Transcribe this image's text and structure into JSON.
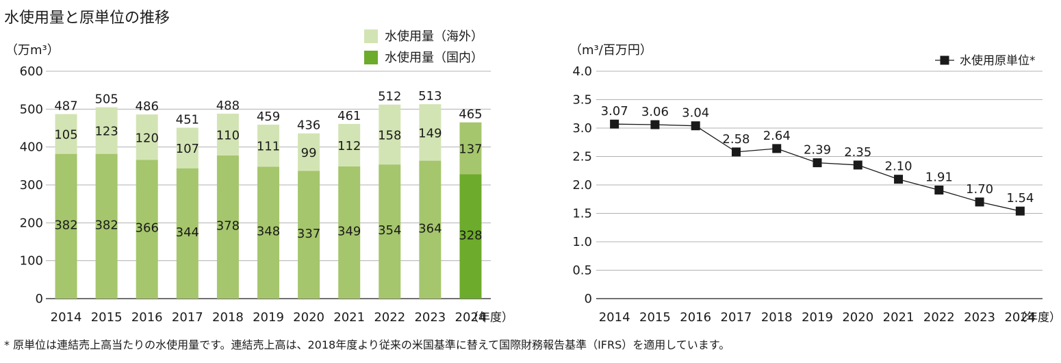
{
  "title": "水使用量と原単位の推移",
  "footnote": "* 原単位は連結売上高当たりの水使用量です。連結売上高は、2018年度より従来の米国基準に替えて国際財務報告基準（IFRS）を適用しています。",
  "chart_data": [
    {
      "type": "bar",
      "stacked": true,
      "unit_label": "（万m³）",
      "x_suffix": "（年度）",
      "categories": [
        "2014",
        "2015",
        "2016",
        "2017",
        "2018",
        "2019",
        "2020",
        "2021",
        "2022",
        "2023",
        "2024"
      ],
      "series": [
        {
          "name": "水使用量（国内）",
          "values": [
            382,
            382,
            366,
            344,
            378,
            348,
            337,
            349,
            354,
            364,
            328
          ]
        },
        {
          "name": "水使用量（海外）",
          "values": [
            105,
            123,
            120,
            107,
            110,
            111,
            99,
            112,
            158,
            149,
            137
          ]
        }
      ],
      "totals": [
        487,
        505,
        486,
        451,
        488,
        459,
        436,
        461,
        512,
        513,
        465
      ],
      "ylim": [
        0,
        600
      ],
      "yticks": [
        0,
        100,
        200,
        300,
        400,
        500,
        600
      ],
      "grid": true,
      "legend_position": "top-right",
      "colors": {
        "domestic": "#a5c66c",
        "overseas": "#d3e4b4",
        "domestic_highlight": "#6dab2c",
        "overseas_highlight": "#a5c66c"
      }
    },
    {
      "type": "line",
      "unit_label": "（m³/百万円）",
      "x_suffix": "（年度）",
      "x": [
        "2014",
        "2015",
        "2016",
        "2017",
        "2018",
        "2019",
        "2020",
        "2021",
        "2022",
        "2023",
        "2024"
      ],
      "series": [
        {
          "name": "水使用原単位*",
          "values": [
            3.07,
            3.06,
            3.04,
            2.58,
            2.64,
            2.39,
            2.35,
            2.1,
            1.91,
            1.7,
            1.54
          ]
        }
      ],
      "value_labels": [
        "3.07",
        "3.06",
        "3.04",
        "2.58",
        "2.64",
        "2.39",
        "2.35",
        "2.10",
        "1.91",
        "1.70",
        "1.54"
      ],
      "ylim": [
        0,
        4.0
      ],
      "yticks": [
        "0",
        "0.5",
        "1.0",
        "1.5",
        "2.0",
        "2.5",
        "3.0",
        "3.5",
        "4.0"
      ],
      "grid": true,
      "legend_position": "top-right",
      "colors": {
        "line": "#1a1a1a",
        "marker": "#1a1a1a"
      }
    }
  ]
}
